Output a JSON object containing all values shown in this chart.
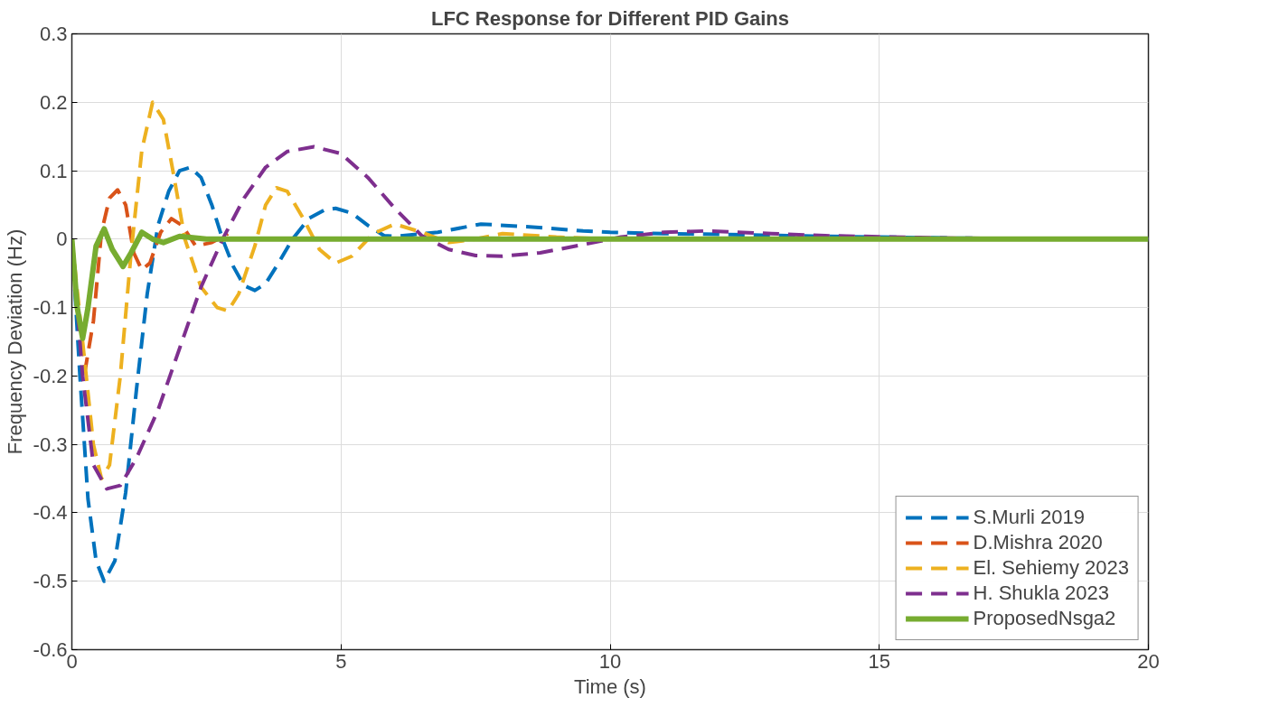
{
  "chart_data": {
    "type": "line",
    "title": "LFC Response for Different PID Gains",
    "xlabel": "Time (s)",
    "ylabel": "Frequency Deviation (Hz)",
    "xlim": [
      0,
      20
    ],
    "ylim": [
      -0.6,
      0.3
    ],
    "xticks": [
      0,
      5,
      10,
      15,
      20
    ],
    "yticks": [
      -0.6,
      -0.5,
      -0.4,
      -0.3,
      -0.2,
      -0.1,
      0,
      0.1,
      0.2,
      0.3
    ],
    "grid": true,
    "legend": "bottom right",
    "series": [
      {
        "name": "S.Murli 2019",
        "color": "#0072bd",
        "line_style": "dashed",
        "x": [
          0,
          0.15,
          0.3,
          0.45,
          0.6,
          0.8,
          1.0,
          1.2,
          1.4,
          1.6,
          1.8,
          2.0,
          2.2,
          2.4,
          2.6,
          2.8,
          3.0,
          3.2,
          3.4,
          3.6,
          3.8,
          4.1,
          4.4,
          4.7,
          4.9,
          5.2,
          5.5,
          5.8,
          6.0,
          6.8,
          7.6,
          8.5,
          9.5,
          10,
          11,
          12,
          14,
          16,
          18,
          20
        ],
        "values": [
          0,
          -0.2,
          -0.38,
          -0.47,
          -0.5,
          -0.47,
          -0.37,
          -0.22,
          -0.08,
          0.02,
          0.07,
          0.1,
          0.105,
          0.09,
          0.05,
          0.0,
          -0.04,
          -0.068,
          -0.075,
          -0.065,
          -0.04,
          0.0,
          0.03,
          0.043,
          0.045,
          0.038,
          0.02,
          0.005,
          0.004,
          0.01,
          0.022,
          0.018,
          0.012,
          0.01,
          0.008,
          0.007,
          0.004,
          0.002,
          null,
          0
        ]
      },
      {
        "name": "D.Mishra 2020",
        "color": "#d95319",
        "line_style": "dashed",
        "x": [
          0,
          0.1,
          0.25,
          0.4,
          0.55,
          0.7,
          0.85,
          1.0,
          1.15,
          1.3,
          1.45,
          1.65,
          1.85,
          2.05,
          2.3,
          2.6,
          2.9
        ],
        "values": [
          0,
          -0.1,
          -0.19,
          -0.12,
          0.01,
          0.06,
          0.072,
          0.05,
          -0.02,
          -0.045,
          -0.035,
          0.01,
          0.03,
          0.02,
          -0.01,
          -0.005,
          0.008
        ]
      },
      {
        "name": "El. Sehiemy 2023",
        "color": "#edb120",
        "line_style": "dashed",
        "x": [
          0,
          0.2,
          0.4,
          0.55,
          0.7,
          0.9,
          1.1,
          1.3,
          1.5,
          1.7,
          1.9,
          2.1,
          2.4,
          2.7,
          2.9,
          3.1,
          3.4,
          3.6,
          3.8,
          4.0,
          4.3,
          4.6,
          4.9,
          5.2,
          5.6,
          6.0,
          6.5,
          7.0,
          7.5,
          8,
          9,
          10,
          20
        ],
        "values": [
          0,
          -0.15,
          -0.3,
          -0.35,
          -0.33,
          -0.2,
          -0.02,
          0.13,
          0.2,
          0.175,
          0.09,
          0.0,
          -0.07,
          -0.1,
          -0.105,
          -0.08,
          -0.01,
          0.05,
          0.075,
          0.07,
          0.03,
          -0.015,
          -0.035,
          -0.025,
          0.008,
          0.022,
          0.01,
          -0.005,
          0.0,
          0.008,
          0.003,
          0,
          0
        ]
      },
      {
        "name": "H. Shukla 2023",
        "color": "#7e2f8e",
        "line_style": "dashed",
        "x": [
          0,
          0.2,
          0.4,
          0.65,
          0.9,
          1.2,
          1.6,
          2.0,
          2.4,
          2.8,
          3.2,
          3.6,
          4.0,
          4.5,
          5.0,
          5.5,
          6.0,
          6.5,
          7.0,
          7.5,
          8.0,
          8.7,
          9.5,
          10.2,
          11,
          11.8,
          13,
          14,
          16,
          18,
          20
        ],
        "values": [
          0,
          -0.2,
          -0.33,
          -0.365,
          -0.36,
          -0.32,
          -0.25,
          -0.16,
          -0.07,
          0.0,
          0.06,
          0.105,
          0.128,
          0.135,
          0.125,
          0.09,
          0.045,
          0.005,
          -0.015,
          -0.024,
          -0.025,
          -0.02,
          -0.008,
          0.003,
          0.01,
          0.012,
          0.008,
          0.005,
          0.002,
          null,
          0
        ]
      },
      {
        "name": "ProposedNsga2",
        "color": "#77ac30",
        "line_style": "solid",
        "x": [
          0,
          0.1,
          0.2,
          0.3,
          0.45,
          0.6,
          0.75,
          0.95,
          1.1,
          1.3,
          1.5,
          1.7,
          2.0,
          2.5,
          20
        ],
        "values": [
          0,
          -0.1,
          -0.145,
          -0.1,
          -0.01,
          0.015,
          -0.015,
          -0.04,
          -0.02,
          0.01,
          0.0,
          -0.005,
          0.004,
          0,
          0
        ]
      }
    ]
  }
}
